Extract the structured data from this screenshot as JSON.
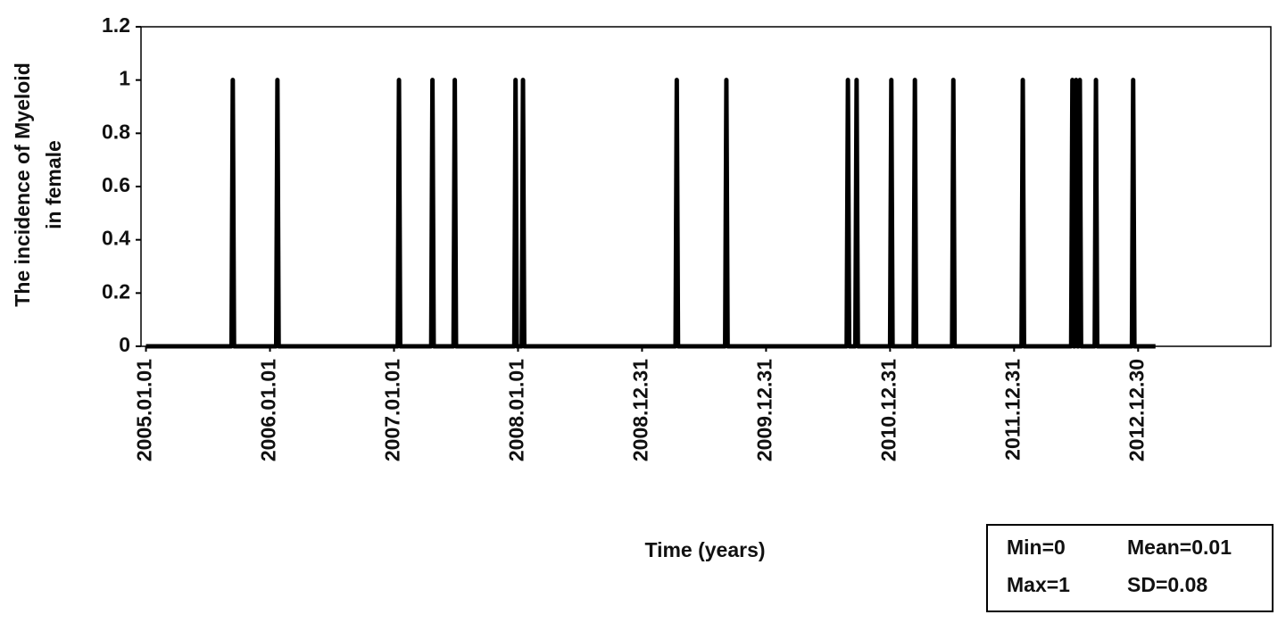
{
  "chart_data": {
    "type": "line",
    "y_label": [
      "The incidence of Myeloid",
      "in female"
    ],
    "x_label": "Time (years)",
    "stats": [
      "Min=0",
      "Mean=0.01",
      "Max=1",
      "SD=0.08"
    ],
    "color": "#000000",
    "x": [
      2005.0,
      2005.69,
      2005.7,
      2005.71,
      2006.05,
      2006.06,
      2006.07,
      2007.03,
      2007.04,
      2007.05,
      2007.3,
      2007.31,
      2007.32,
      2007.48,
      2007.49,
      2007.5,
      2007.97,
      2007.98,
      2007.99,
      2008.03,
      2008.04,
      2008.05,
      2009.27,
      2009.28,
      2009.29,
      2009.67,
      2009.68,
      2009.69,
      2010.65,
      2010.66,
      2010.67,
      2010.72,
      2010.73,
      2010.74,
      2011.0,
      2011.01,
      2011.02,
      2011.19,
      2011.2,
      2011.21,
      2011.5,
      2011.51,
      2011.52,
      2012.06,
      2012.07,
      2012.08,
      2012.46,
      2012.47,
      2012.48,
      2012.49,
      2012.5,
      2012.51,
      2012.52,
      2012.53,
      2012.54,
      2012.65,
      2012.66,
      2012.67,
      2012.95,
      2012.96,
      2012.97,
      2013.14
    ],
    "values": [
      0,
      0,
      1,
      0,
      0,
      1,
      0,
      0,
      1,
      0,
      0,
      1,
      0,
      0,
      1,
      0,
      0,
      1,
      0,
      0,
      1,
      0,
      0,
      1,
      0,
      0,
      1,
      0,
      0,
      1,
      0,
      0,
      1,
      0,
      0,
      1,
      0,
      0,
      1,
      0,
      0,
      1,
      0,
      0,
      1,
      0,
      0,
      1,
      0,
      0,
      1,
      0,
      0,
      1,
      0,
      0,
      1,
      0,
      0,
      1,
      0,
      0
    ],
    "xlim": [
      2004.96,
      2014.07
    ],
    "xticks": [
      {
        "value": 2005.0,
        "label": "2005.01.01"
      },
      {
        "value": 2006.0,
        "label": "2006.01.01"
      },
      {
        "value": 2007.0,
        "label": "2007.01.01"
      },
      {
        "value": 2008.0,
        "label": "2008.01.01"
      },
      {
        "value": 2009.0,
        "label": "2008.12.31"
      },
      {
        "value": 2010.0,
        "label": "2009.12.31"
      },
      {
        "value": 2011.0,
        "label": "2010.12.31"
      },
      {
        "value": 2012.0,
        "label": "2011.12.31"
      },
      {
        "value": 2013.0,
        "label": "2012.12.30"
      }
    ],
    "ylim": [
      0,
      1.2
    ],
    "yticks": [
      0,
      0.2,
      0.4,
      0.6,
      0.8,
      1,
      1.2
    ]
  }
}
